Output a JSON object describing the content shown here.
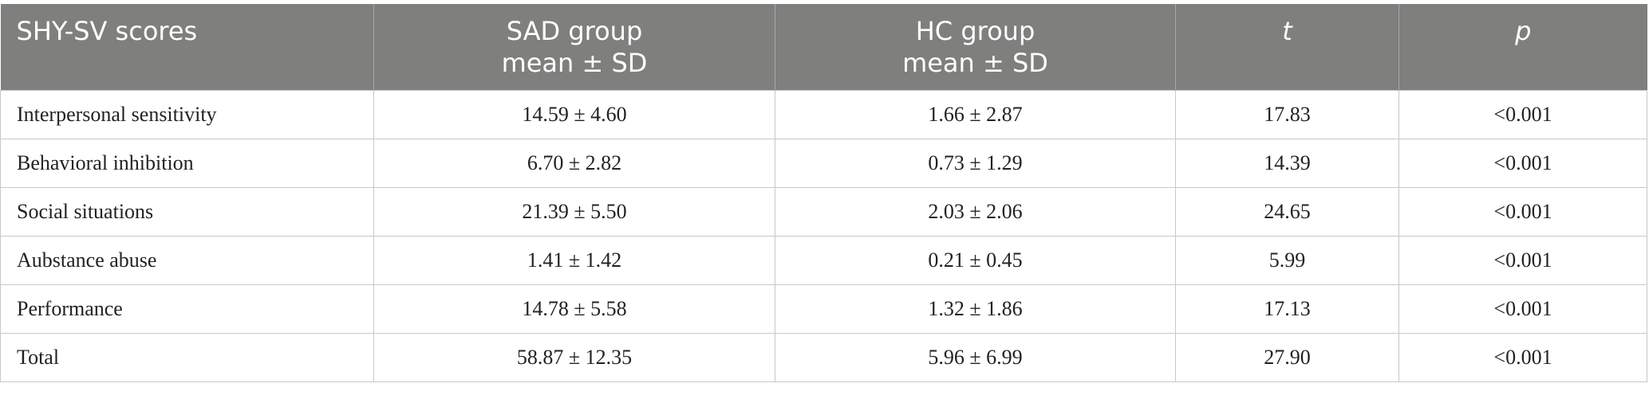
{
  "table": {
    "header": [
      [
        "SHY-SV scores"
      ],
      [
        "SAD group",
        "mean ± SD"
      ],
      [
        "HC group",
        "mean ± SD"
      ],
      [
        "t"
      ],
      [
        "p"
      ]
    ],
    "rows": [
      [
        "Interpersonal sensitivity",
        "14.59 ± 4.60",
        "1.66 ± 2.87",
        "17.83",
        "<0.001"
      ],
      [
        "Behavioral inhibition",
        "6.70 ± 2.82",
        "0.73 ± 1.29",
        "14.39",
        "<0.001"
      ],
      [
        "Social situations",
        "21.39 ± 5.50",
        "2.03 ± 2.06",
        "24.65",
        "<0.001"
      ],
      [
        "Aubstance abuse",
        "1.41 ± 1.42",
        "0.21 ± 0.45",
        "5.99",
        "<0.001"
      ],
      [
        "Performance",
        "14.78 ± 5.58",
        "1.32 ± 1.86",
        "17.13",
        "<0.001"
      ],
      [
        "Total",
        "58.87 ± 12.35",
        "5.96 ± 6.99",
        "27.90",
        "<0.001"
      ]
    ]
  }
}
